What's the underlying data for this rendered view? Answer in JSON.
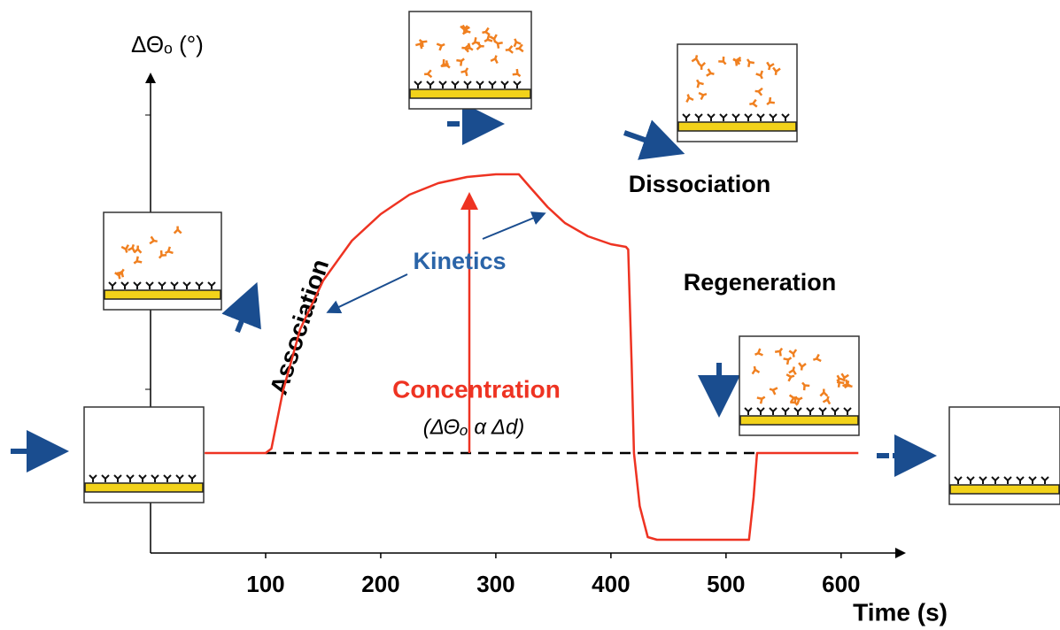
{
  "chart_data": {
    "type": "line",
    "y_label": "ΔΘₒ (°)",
    "x_label": "Time  (s)",
    "annotations": {
      "association": "Association",
      "kinetics": "Kinetics",
      "concentration": "Concentration",
      "relation": "(ΔΘₒ α Δd)",
      "dissociation": "Dissociation",
      "regeneration": "Regeneration"
    },
    "xlim": [
      0,
      654
    ],
    "ylim": [
      -1.13,
      4.27
    ],
    "xticks": [
      100,
      200,
      300,
      400,
      500,
      600
    ],
    "series": [
      {
        "color": "#ee3322",
        "x": [
          47,
          100,
          105,
          115,
          130,
          150,
          175,
          200,
          225,
          250,
          275,
          300,
          320,
          330,
          345,
          360,
          380,
          400,
          413,
          415,
          418,
          420,
          425,
          432,
          440,
          520,
          524,
          527,
          530,
          615
        ],
        "values": [
          0,
          0,
          0.05,
          0.7,
          1.4,
          1.95,
          2.4,
          2.7,
          2.92,
          3.05,
          3.12,
          3.15,
          3.15,
          3.0,
          2.78,
          2.6,
          2.45,
          2.36,
          2.33,
          2.3,
          1.0,
          0,
          -0.6,
          -0.95,
          -0.98,
          -0.98,
          -0.5,
          0,
          0,
          0
        ]
      }
    ]
  }
}
